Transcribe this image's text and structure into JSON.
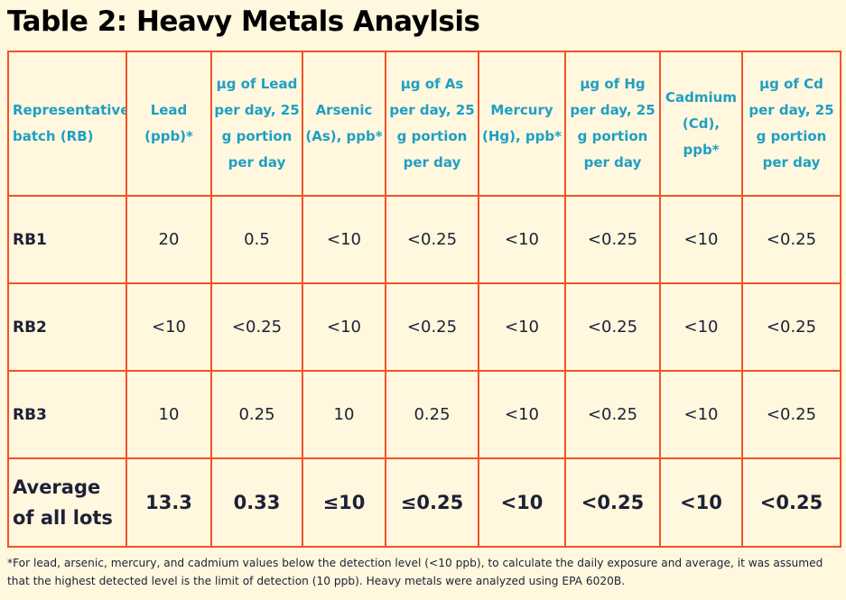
{
  "title": "Table 2: Heavy Metals Anaylsis",
  "table": {
    "headers": [
      "Representative batch (RB)",
      "Lead (ppb)*",
      "µg of Lead per day, 25 g portion per day",
      "Arsenic (As), ppb*",
      "µg of As per day, 25 g portion per day",
      "Mercury (Hg), ppb*",
      "µg of Hg per day, 25 g portion per day",
      "Cadmium (Cd), ppb*",
      "µg of Cd per day, 25 g portion per day"
    ],
    "rows": [
      [
        "RB1",
        "20",
        "0.5",
        "<10",
        "<0.25",
        "<10",
        "<0.25",
        "<10",
        "<0.25"
      ],
      [
        "RB2",
        "<10",
        "<0.25",
        "<10",
        "<0.25",
        "<10",
        "<0.25",
        "<10",
        "<0.25"
      ],
      [
        "RB3",
        "10",
        "0.25",
        "10",
        "0.25",
        "<10",
        "<0.25",
        "<10",
        "<0.25"
      ]
    ],
    "average_row": [
      "Average of all lots",
      "13.3",
      "0.33",
      "≤10",
      "≤0.25",
      "<10",
      "<0.25",
      "<10",
      "<0.25"
    ]
  },
  "footnote": "*For lead, arsenic, mercury, and cadmium values below the detection level (<10 ppb), to calculate the daily exposure and average, it was assumed that the highest detected level is the limit of detection (10 ppb). Heavy metals were analyzed using EPA 6020B.",
  "colors": {
    "background": "#fff7de",
    "border": "#f0532a",
    "header_text": "#1f9fc4",
    "body_text": "#1d2136"
  }
}
